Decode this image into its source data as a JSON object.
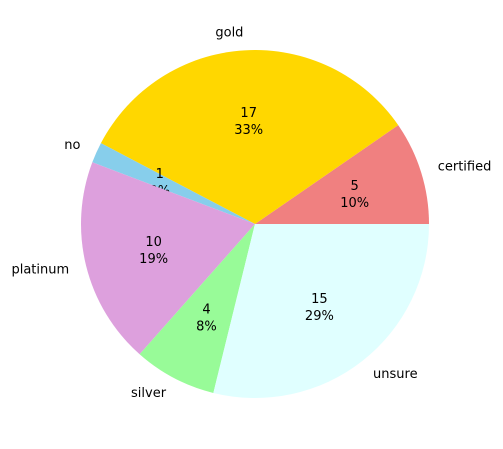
{
  "chart_data": {
    "type": "pie",
    "title": "",
    "start_angle": 0,
    "direction": "counterclockwise",
    "slices": [
      {
        "label": "certified",
        "value": 5,
        "percent": "10%",
        "color": "#F08080"
      },
      {
        "label": "gold",
        "value": 17,
        "percent": "33%",
        "color": "#FFD700"
      },
      {
        "label": "no",
        "value": 1,
        "percent": "2%",
        "color": "#87CEEB"
      },
      {
        "label": "platinum",
        "value": 10,
        "percent": "19%",
        "color": "#DDA0DD"
      },
      {
        "label": "silver",
        "value": 4,
        "percent": "8%",
        "color": "#98FB98"
      },
      {
        "label": "unsure",
        "value": 15,
        "percent": "29%",
        "color": "#E0FFFF"
      }
    ]
  }
}
